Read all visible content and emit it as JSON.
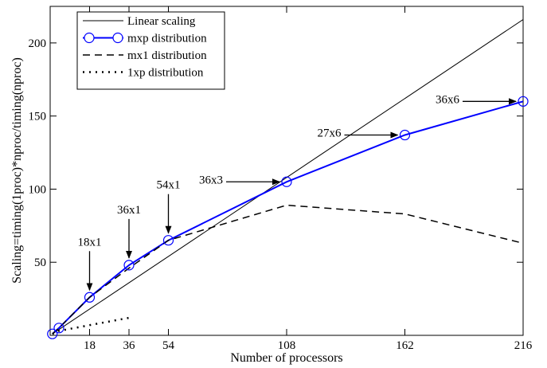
{
  "chart_data": {
    "type": "line",
    "title": "",
    "xlabel": "Number of processors",
    "ylabel": "Scaling=timing(1proc)*nproc/timing(nproc)",
    "xlim": [
      0,
      216
    ],
    "ylim": [
      0,
      225
    ],
    "xticks": [
      18,
      36,
      54,
      108,
      162,
      216
    ],
    "yticks": [
      50,
      100,
      150,
      200
    ],
    "grid": false,
    "legend_position": "top-left",
    "series": [
      {
        "name": "Linear scaling",
        "style": "solid-thin",
        "color": "#000000",
        "x": [
          1,
          216
        ],
        "y": [
          1,
          216
        ]
      },
      {
        "name": "mxp distribution",
        "style": "solid-markers",
        "color": "#0000ff",
        "x": [
          1,
          4,
          18,
          36,
          54,
          108,
          162,
          216
        ],
        "y": [
          1,
          5,
          26,
          48,
          65,
          105,
          137,
          160
        ]
      },
      {
        "name": "mx1 distribution",
        "style": "dashed",
        "color": "#000000",
        "x": [
          1,
          4,
          18,
          36,
          54,
          108,
          162,
          216
        ],
        "y": [
          1,
          5,
          26,
          46,
          65,
          89,
          83,
          63
        ]
      },
      {
        "name": "1xp distribution",
        "style": "dotted",
        "color": "#000000",
        "x": [
          1,
          4,
          18,
          36
        ],
        "y": [
          1,
          3,
          7,
          12
        ]
      }
    ],
    "annotations": [
      {
        "label": "18x1",
        "x": 18,
        "y": 26,
        "dir": "down"
      },
      {
        "label": "36x1",
        "x": 36,
        "y": 48,
        "dir": "down"
      },
      {
        "label": "54x1",
        "x": 54,
        "y": 65,
        "dir": "down"
      },
      {
        "label": "36x3",
        "x": 108,
        "y": 105,
        "dir": "right"
      },
      {
        "label": "27x6",
        "x": 162,
        "y": 137,
        "dir": "right"
      },
      {
        "label": "36x6",
        "x": 216,
        "y": 160,
        "dir": "right"
      }
    ]
  }
}
